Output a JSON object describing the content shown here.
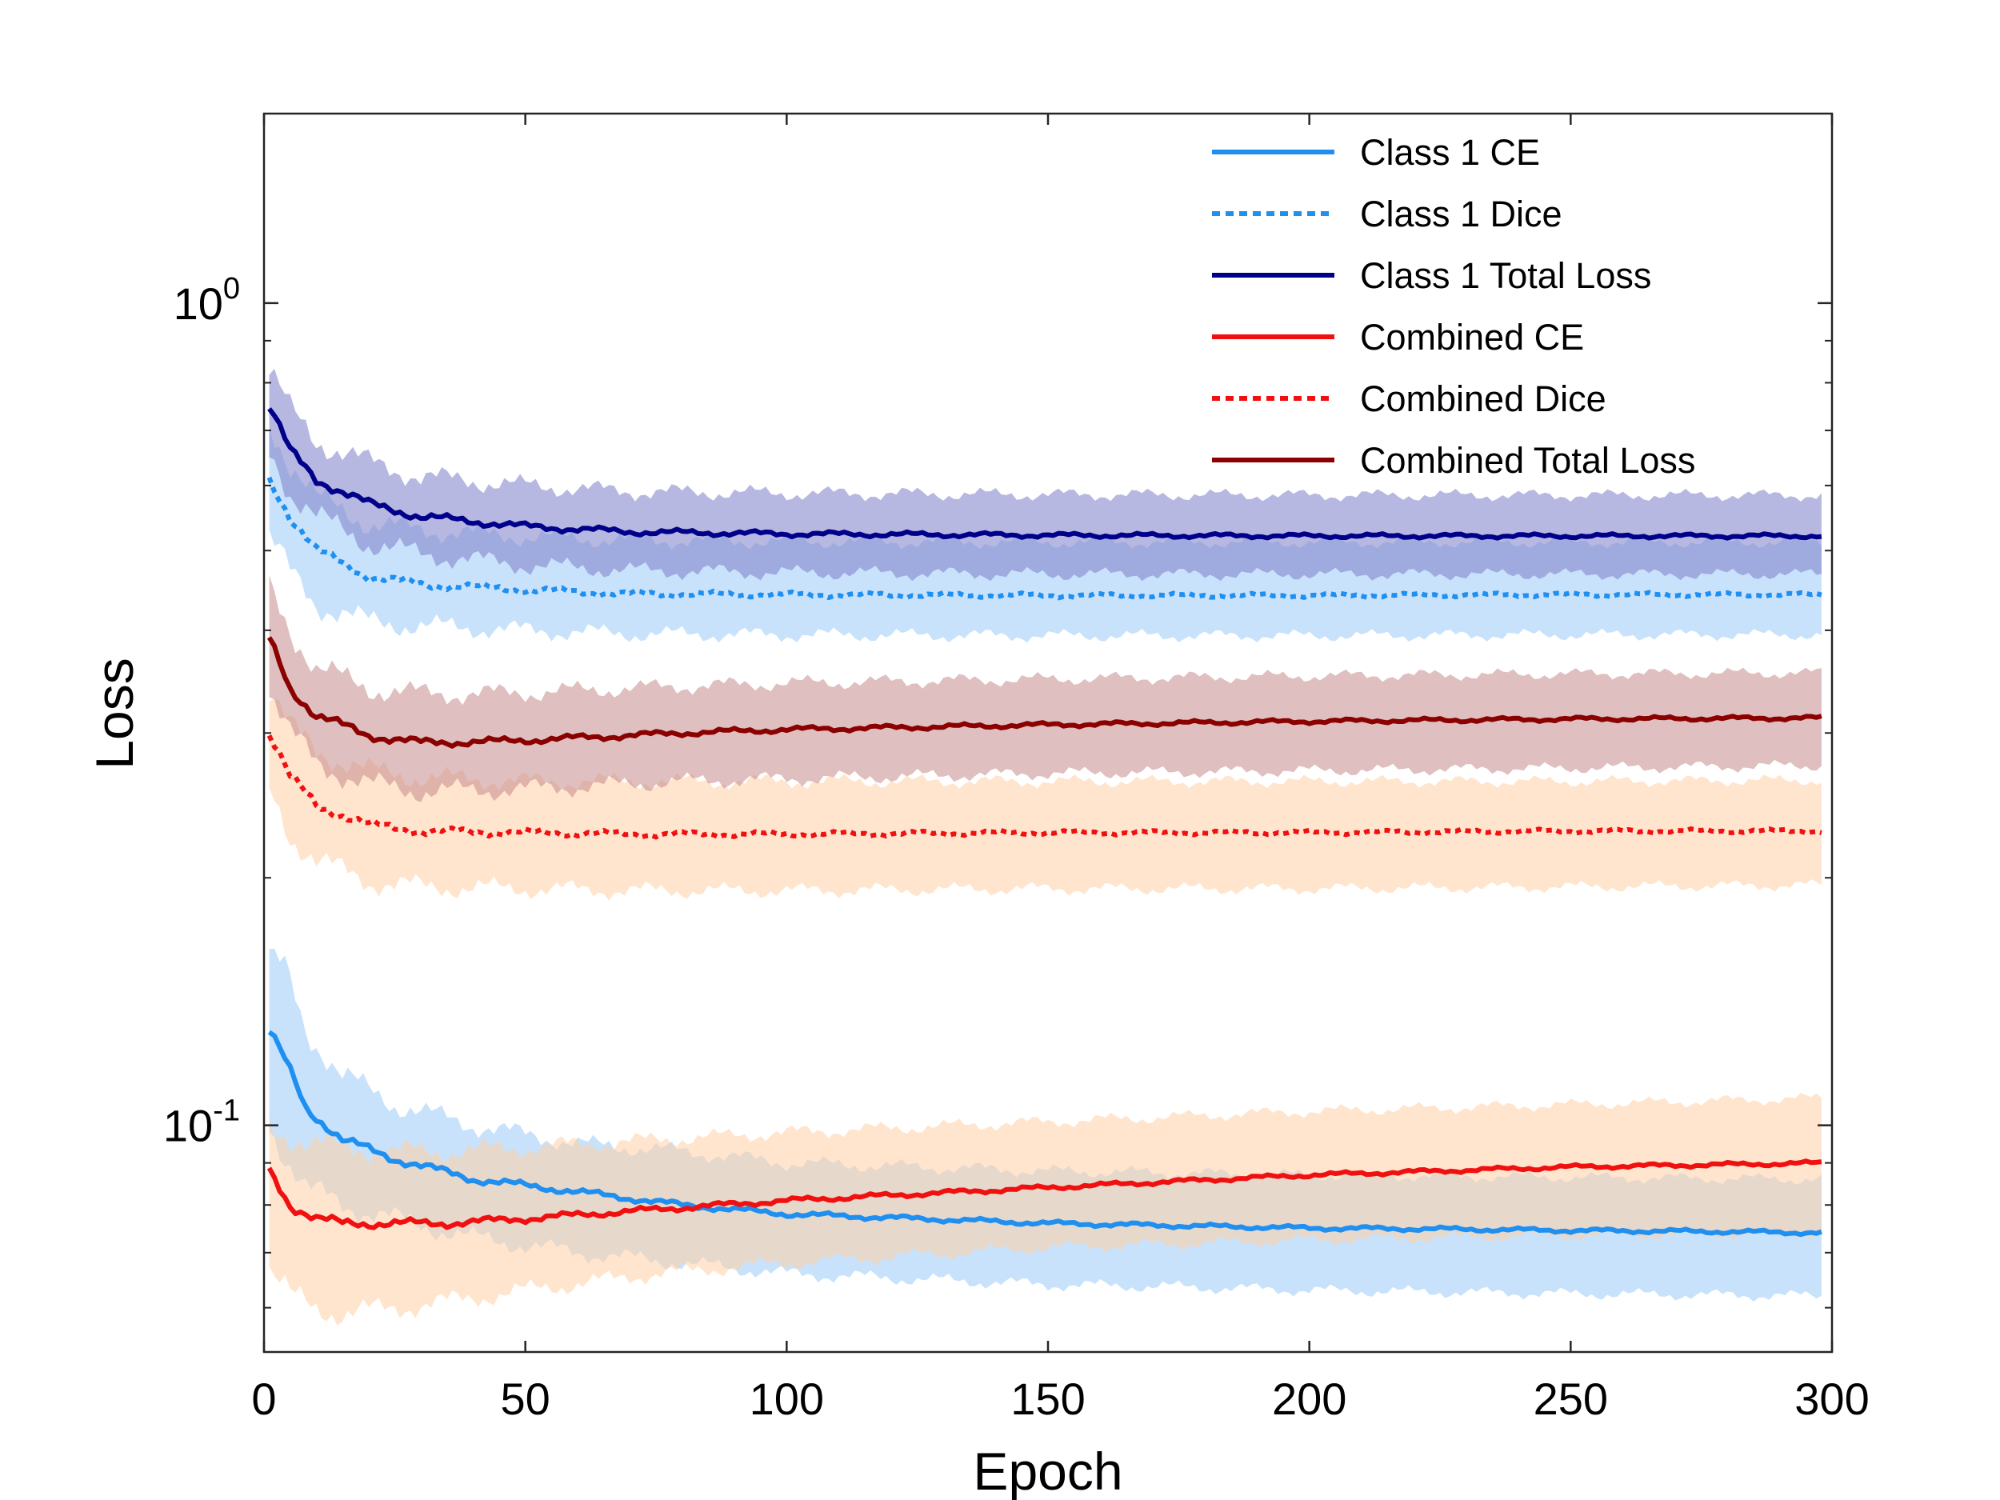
{
  "chart_data": {
    "type": "line",
    "title": "",
    "xlabel": "Epoch",
    "ylabel": "Loss",
    "xlim": [
      0,
      300
    ],
    "ylim": [
      0.053,
      1.7
    ],
    "yscale": "log",
    "xticks": [
      0,
      50,
      100,
      150,
      200,
      250,
      300
    ],
    "yticks": [
      {
        "value": 1.0,
        "base": "10",
        "exp": "0"
      },
      {
        "value": 0.1,
        "base": "10",
        "exp": "-1"
      }
    ],
    "legend_position": "top-right",
    "series": [
      {
        "name": "Class 1 CE",
        "color": "#1f8ff0",
        "style": "solid",
        "band_color": "#9ccbf7",
        "x": [
          1,
          4,
          8,
          15,
          25,
          40,
          60,
          80,
          100,
          125,
          150,
          175,
          200,
          225,
          250,
          275,
          300
        ],
        "values": [
          0.13,
          0.12,
          0.105,
          0.096,
          0.091,
          0.086,
          0.083,
          0.08,
          0.078,
          0.077,
          0.076,
          0.0755,
          0.075,
          0.0748,
          0.0745,
          0.0743,
          0.074
        ],
        "lower": [
          0.1,
          0.092,
          0.084,
          0.08,
          0.077,
          0.073,
          0.07,
          0.068,
          0.066,
          0.065,
          0.064,
          0.0636,
          0.063,
          0.0627,
          0.0624,
          0.0622,
          0.062
        ],
        "upper": [
          0.16,
          0.155,
          0.13,
          0.115,
          0.106,
          0.1,
          0.095,
          0.093,
          0.09,
          0.089,
          0.088,
          0.0875,
          0.087,
          0.0867,
          0.0865,
          0.0862,
          0.086
        ]
      },
      {
        "name": "Class 1 Dice",
        "color": "#1f8ff0",
        "style": "dotted",
        "band_color": "#9ccbf7",
        "x": [
          1,
          5,
          10,
          20,
          30,
          50,
          70,
          100,
          150,
          200,
          250,
          300
        ],
        "values": [
          0.61,
          0.55,
          0.5,
          0.465,
          0.455,
          0.448,
          0.443,
          0.442,
          0.441,
          0.441,
          0.442,
          0.442
        ],
        "lower": [
          0.52,
          0.47,
          0.43,
          0.41,
          0.405,
          0.4,
          0.396,
          0.395,
          0.394,
          0.394,
          0.395,
          0.395
        ],
        "upper": [
          0.71,
          0.64,
          0.58,
          0.54,
          0.53,
          0.52,
          0.515,
          0.513,
          0.512,
          0.512,
          0.512,
          0.512
        ]
      },
      {
        "name": "Class 1 Total Loss",
        "color": "#00008b",
        "style": "solid",
        "band_color": "#7b7ec9",
        "x": [
          1,
          5,
          10,
          20,
          30,
          50,
          70,
          100,
          150,
          200,
          250,
          300
        ],
        "values": [
          0.75,
          0.66,
          0.61,
          0.57,
          0.55,
          0.535,
          0.527,
          0.524,
          0.522,
          0.521,
          0.521,
          0.521
        ],
        "lower": [
          0.66,
          0.59,
          0.55,
          0.51,
          0.495,
          0.48,
          0.473,
          0.47,
          0.468,
          0.468,
          0.468,
          0.468
        ],
        "upper": [
          0.83,
          0.74,
          0.68,
          0.64,
          0.615,
          0.6,
          0.59,
          0.587,
          0.585,
          0.584,
          0.584,
          0.584
        ]
      },
      {
        "name": "Combined CE",
        "color": "#f01010",
        "style": "solid",
        "band_color": "#ffcfa6",
        "x": [
          1,
          5,
          10,
          15,
          25,
          35,
          50,
          75,
          100,
          150,
          200,
          250,
          300
        ],
        "values": [
          0.088,
          0.08,
          0.077,
          0.076,
          0.076,
          0.076,
          0.077,
          0.079,
          0.081,
          0.084,
          0.087,
          0.089,
          0.09
        ],
        "lower": [
          0.067,
          0.062,
          0.06,
          0.059,
          0.06,
          0.061,
          0.063,
          0.066,
          0.068,
          0.071,
          0.0725,
          0.0735,
          0.074
        ],
        "upper": [
          0.099,
          0.097,
          0.095,
          0.094,
          0.093,
          0.093,
          0.094,
          0.096,
          0.098,
          0.101,
          0.104,
          0.106,
          0.108
        ]
      },
      {
        "name": "Combined Dice",
        "color": "#f01010",
        "style": "dotted",
        "band_color": "#ffcfa6",
        "x": [
          1,
          5,
          10,
          20,
          30,
          50,
          70,
          100,
          150,
          200,
          250,
          300
        ],
        "values": [
          0.3,
          0.265,
          0.245,
          0.232,
          0.228,
          0.227,
          0.226,
          0.226,
          0.227,
          0.227,
          0.228,
          0.228
        ],
        "lower": [
          0.255,
          0.225,
          0.21,
          0.198,
          0.195,
          0.194,
          0.193,
          0.193,
          0.194,
          0.194,
          0.195,
          0.196
        ],
        "upper": [
          0.34,
          0.305,
          0.285,
          0.27,
          0.265,
          0.262,
          0.262,
          0.262,
          0.262,
          0.262,
          0.262,
          0.263
        ]
      },
      {
        "name": "Combined Total Loss",
        "color": "#8b0000",
        "style": "solid",
        "band_color": "#c58b8b",
        "x": [
          1,
          5,
          10,
          20,
          30,
          45,
          60,
          80,
          100,
          150,
          200,
          250,
          300
        ],
        "values": [
          0.39,
          0.34,
          0.315,
          0.298,
          0.292,
          0.293,
          0.296,
          0.3,
          0.303,
          0.307,
          0.31,
          0.312,
          0.313
        ],
        "lower": [
          0.34,
          0.3,
          0.275,
          0.26,
          0.255,
          0.256,
          0.258,
          0.262,
          0.264,
          0.268,
          0.27,
          0.272,
          0.274
        ],
        "upper": [
          0.45,
          0.4,
          0.36,
          0.34,
          0.335,
          0.335,
          0.338,
          0.342,
          0.345,
          0.349,
          0.352,
          0.354,
          0.355
        ]
      }
    ]
  }
}
